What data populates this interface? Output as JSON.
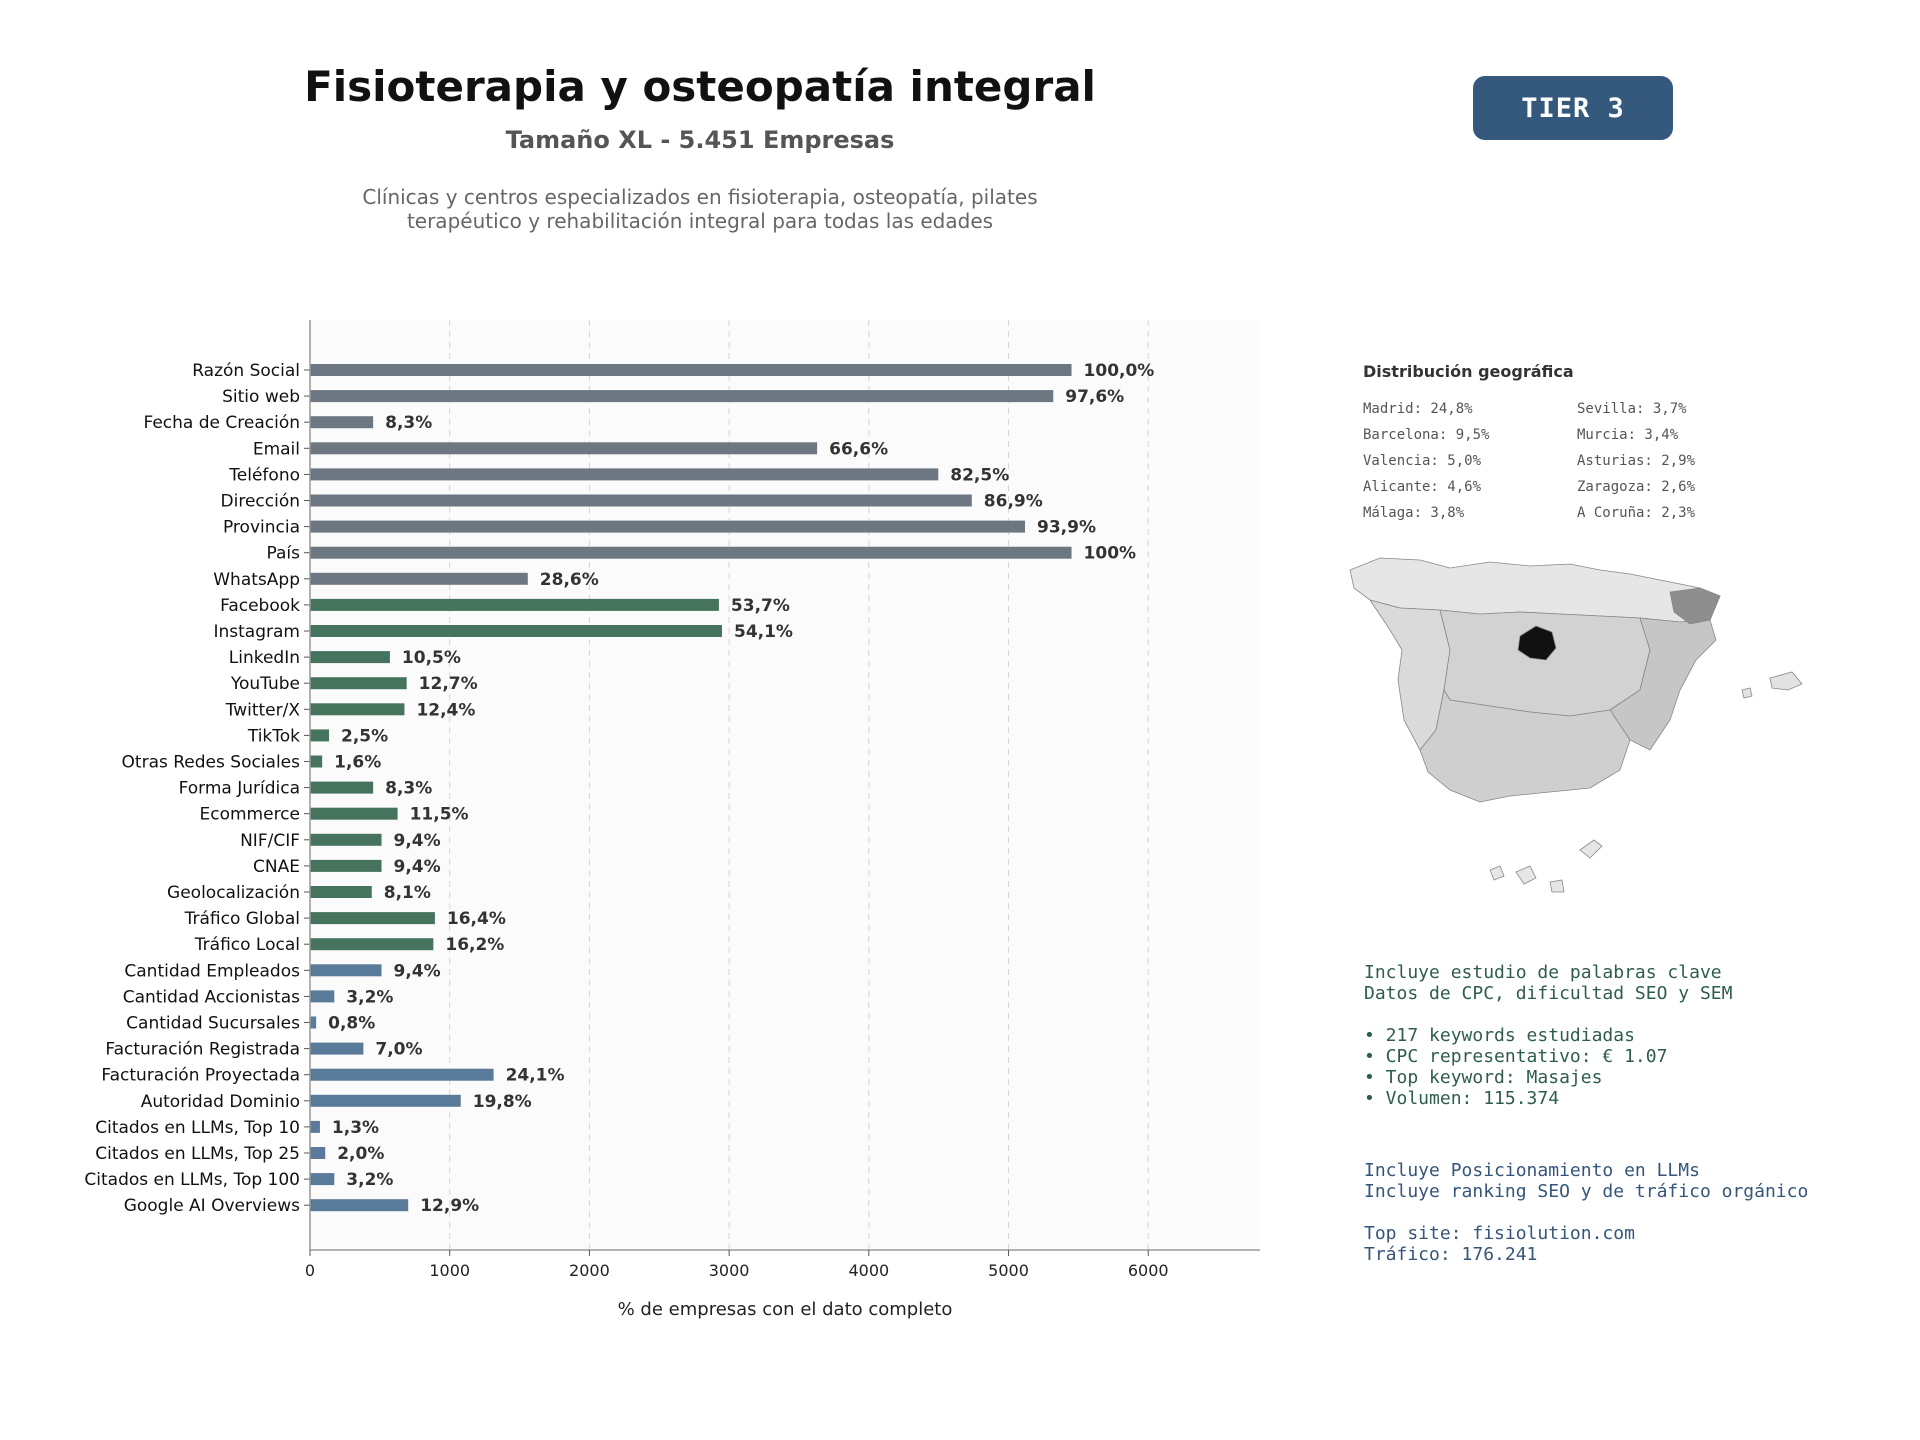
{
  "header": {
    "title": "Fisioterapia y osteopatía integral",
    "subtitle": "Tamaño XL - 5.451 Empresas",
    "description_line1": "Clínicas y centros especializados en fisioterapia, osteopatía, pilates",
    "description_line2": "terapéutico y rehabilitación integral para todas las edades",
    "tier": "TIER 3"
  },
  "colors": {
    "gray_bars": "#6c7781",
    "green_bars": "#46735e",
    "blue_bars": "#5a7a99",
    "tier_bg": "#34597d",
    "map_highlight": "#111111"
  },
  "chart_data": {
    "type": "bar",
    "orientation": "horizontal",
    "xlabel": "% de empresas con el dato completo",
    "xlim": [
      0,
      6800
    ],
    "xticks": [
      0,
      1000,
      2000,
      3000,
      4000,
      5000,
      6000
    ],
    "grid": "vertical dashed",
    "categories": [
      "Razón Social",
      "Sitio web",
      "Fecha de Creación",
      "Email",
      "Teléfono",
      "Dirección",
      "Provincia",
      "País",
      "WhatsApp",
      "Facebook",
      "Instagram",
      "LinkedIn",
      "YouTube",
      "Twitter/X",
      "TikTok",
      "Otras Redes Sociales",
      "Forma Jurídica",
      "Ecommerce",
      "NIF/CIF",
      "CNAE",
      "Geolocalización",
      "Tráfico Global",
      "Tráfico Local",
      "Cantidad Empleados",
      "Cantidad Accionistas",
      "Cantidad Sucursales",
      "Facturación Registrada",
      "Facturación Proyectada",
      "Autoridad Dominio",
      "Citados en LLMs, Top 10",
      "Citados en LLMs, Top 25",
      "Citados en LLMs, Top 100",
      "Google AI Overviews"
    ],
    "values": [
      5451,
      5320,
      452,
      3630,
      4497,
      4737,
      5118,
      5451,
      1559,
      2927,
      2949,
      572,
      692,
      676,
      136,
      87,
      452,
      627,
      512,
      512,
      442,
      894,
      883,
      512,
      174,
      44,
      382,
      1314,
      1079,
      71,
      109,
      174,
      703
    ],
    "labels": [
      "100,0%",
      "97,6%",
      "8,3%",
      "66,6%",
      "82,5%",
      "86,9%",
      "93,9%",
      "100%",
      "28,6%",
      "53,7%",
      "54,1%",
      "10,5%",
      "12,7%",
      "12,4%",
      "2,5%",
      "1,6%",
      "8,3%",
      "11,5%",
      "9,4%",
      "9,4%",
      "8,1%",
      "16,4%",
      "16,2%",
      "9,4%",
      "3,2%",
      "0,8%",
      "7,0%",
      "24,1%",
      "19,8%",
      "1,3%",
      "2,0%",
      "3,2%",
      "12,9%"
    ],
    "groups": [
      "gray",
      "gray",
      "gray",
      "gray",
      "gray",
      "gray",
      "gray",
      "gray",
      "gray",
      "green",
      "green",
      "green",
      "green",
      "green",
      "green",
      "green",
      "green",
      "green",
      "green",
      "green",
      "green",
      "green",
      "green",
      "blue",
      "blue",
      "blue",
      "blue",
      "blue",
      "blue",
      "blue",
      "blue",
      "blue",
      "blue"
    ]
  },
  "geo": {
    "title": "Distribución geográfica",
    "items": [
      "Madrid: 24,8%",
      "Sevilla: 3,7%",
      "Barcelona: 9,5%",
      "Murcia: 3,4%",
      "Valencia: 5,0%",
      "Asturias: 2,9%",
      "Alicante: 4,6%",
      "Zaragoza: 2,6%",
      "Málaga: 3,8%",
      "A Coruña: 2,3%"
    ]
  },
  "seo": {
    "lines": [
      "Incluye estudio de palabras clave",
      "Datos de CPC, dificultad SEO y SEM",
      "",
      "• 217 keywords estudiadas",
      "• CPC representativo: € 1.07",
      "• Top keyword: Masajes",
      "• Volumen: 115.374"
    ]
  },
  "llm": {
    "lines": [
      "Incluye Posicionamiento en LLMs",
      "Incluye ranking SEO y de tráfico orgánico",
      "",
      "Top site: fisiolution.com",
      "Tráfico: 176.241"
    ]
  }
}
